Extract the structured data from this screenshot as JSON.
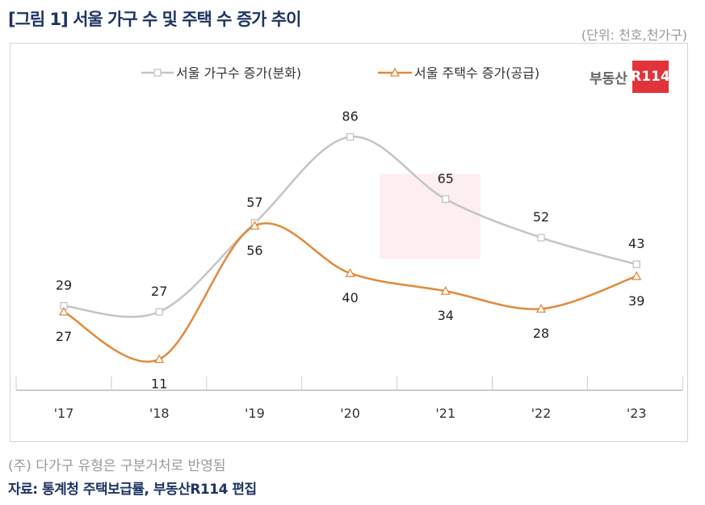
{
  "title": "[그림 1] 서울 가구 수 및 주택 수 증가 추이",
  "unit": "(단위: 천호,천가구)",
  "note": "(주) 다가구 유형은 구분거처로 반영됨",
  "source": "자료: 통계청 주택보급률, 부동산R114 편집",
  "logo": {
    "text": "부동산",
    "box": "R114"
  },
  "chart_data": {
    "type": "line",
    "categories": [
      "'17",
      "'18",
      "'19",
      "'20",
      "'21",
      "'22",
      "'23"
    ],
    "series": [
      {
        "name": "서울 가구수 증가(분화)",
        "values": [
          29,
          27,
          57,
          86,
          65,
          52,
          43
        ],
        "color": "#c4c4c4",
        "marker": "square"
      },
      {
        "name": "서울 주택수 증가(공급)",
        "values": [
          27,
          11,
          56,
          40,
          34,
          28,
          39
        ],
        "color": "#e08a3a",
        "marker": "triangle"
      }
    ],
    "ylim": [
      0,
      100
    ],
    "grid": false,
    "legend": "top",
    "smooth": true
  }
}
